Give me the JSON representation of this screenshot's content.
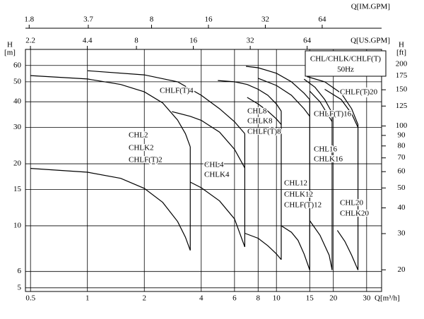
{
  "chart_data": {
    "type": "line",
    "xscale": "log",
    "yscale": "log",
    "grid": true,
    "color": "#000000",
    "xlabel": "Q[m³/h]",
    "ylabel": [
      "H",
      "[m]"
    ],
    "y2label": [
      "H",
      "[ft]"
    ],
    "x2label": "Q[US.GPM]",
    "x3label": "Q[IM.GPM]",
    "xlim": [
      0.47,
      36
    ],
    "xticks": [
      0.5,
      1,
      2,
      4,
      6,
      8,
      10,
      15,
      20,
      30
    ],
    "ylim": [
      4.8,
      71.8
    ],
    "yticks": [
      5,
      6,
      10,
      15,
      20,
      30,
      40,
      50,
      60
    ],
    "y2lim": [
      15.7,
      235.6
    ],
    "y2ticks": [
      20,
      30,
      40,
      50,
      60,
      70,
      80,
      90,
      100,
      125,
      150,
      175,
      200
    ],
    "x2lim": [
      2.07,
      158.5
    ],
    "x2ticks": [
      2.2,
      4.4,
      8,
      16,
      32,
      64
    ],
    "x3lim": [
      1.72,
      132
    ],
    "x3ticks": [
      1.8,
      3.7,
      8,
      16,
      32,
      64
    ],
    "series": [
      {
        "x": [
          0.5,
          1,
          1.5,
          2,
          2.5,
          3,
          3.3,
          3.5
        ],
        "values": [
          19,
          18.2,
          17,
          15.2,
          13,
          10.5,
          8.8,
          7.6
        ]
      },
      {
        "x": [
          0.5,
          1,
          1.5,
          2,
          2.5,
          3,
          3.3,
          3.5
        ],
        "values": [
          53.6,
          51.6,
          48.5,
          44.7,
          39.5,
          32.6,
          28,
          24.2
        ]
      },
      {
        "x": [
          1,
          2,
          3,
          4,
          5,
          6,
          6.8
        ],
        "values": [
          56.6,
          54,
          50,
          43,
          37,
          32,
          28
        ]
      },
      {
        "x": [
          2.8,
          3.5,
          4,
          5,
          6,
          6.8
        ],
        "values": [
          35.8,
          34,
          32.5,
          28.5,
          23.5,
          19.1
        ]
      },
      {
        "x": [
          3.5,
          4,
          5,
          6,
          6.8
        ],
        "values": [
          16.3,
          15.3,
          13.2,
          10.8,
          7.9
        ]
      },
      {
        "x": [
          4.9,
          6,
          7,
          8,
          9,
          10,
          10.6
        ],
        "values": [
          50.7,
          50,
          48.5,
          46,
          43,
          39,
          36
        ]
      },
      {
        "x": [
          7,
          8,
          9,
          10,
          10.6
        ],
        "values": [
          42,
          39,
          36,
          33,
          31
        ]
      },
      {
        "x": [
          6.8,
          8,
          9,
          10,
          10.6
        ],
        "values": [
          9.2,
          8.7,
          8,
          7.3,
          6.85
        ]
      },
      {
        "x": [
          6.9,
          8,
          10,
          12,
          14,
          15
        ],
        "values": [
          59.4,
          58.5,
          55,
          50,
          44,
          41
        ]
      },
      {
        "x": [
          8,
          10,
          12,
          14,
          15
        ],
        "values": [
          52,
          48,
          43,
          37,
          34
        ]
      },
      {
        "x": [
          10.6,
          12,
          13,
          14,
          15
        ],
        "values": [
          10,
          9.3,
          8.5,
          7.3,
          6.1
        ]
      },
      {
        "x": [
          14,
          16,
          18,
          19.7
        ],
        "values": [
          51.5,
          47,
          41,
          35.3
        ]
      },
      {
        "x": [
          15,
          17,
          19.7
        ],
        "values": [
          45,
          40,
          32
        ]
      },
      {
        "x": [
          15,
          17,
          19,
          19.7
        ],
        "values": [
          10.6,
          9,
          7.2,
          6.1
        ]
      },
      {
        "x": [
          14.5,
          18,
          22,
          25,
          27
        ],
        "values": [
          53,
          50,
          44,
          37,
          31
        ]
      },
      {
        "x": [
          18,
          22,
          25,
          27
        ],
        "values": [
          46,
          41,
          35,
          30
        ]
      },
      {
        "x": [
          21,
          23,
          25,
          27
        ],
        "values": [
          9.5,
          8.4,
          7.2,
          6.1
        ]
      }
    ],
    "legend_box": [
      "CHL/CHLK/CHLF(T)",
      "50Hz"
    ],
    "annotations": [
      "CHL2",
      "CHLK2",
      "CHLF(T)2",
      "CHLF(T)4",
      "CHL4",
      "CHLK4",
      "CHL8",
      "CHLK8",
      "CHLF(T)8",
      "CHL12",
      "CHLK12",
      "CHLF(T)12",
      "CHLF(T)16",
      "CHL16",
      "CHLK16",
      "CHLF(T)20",
      "CHL20",
      "CHLK20"
    ]
  }
}
